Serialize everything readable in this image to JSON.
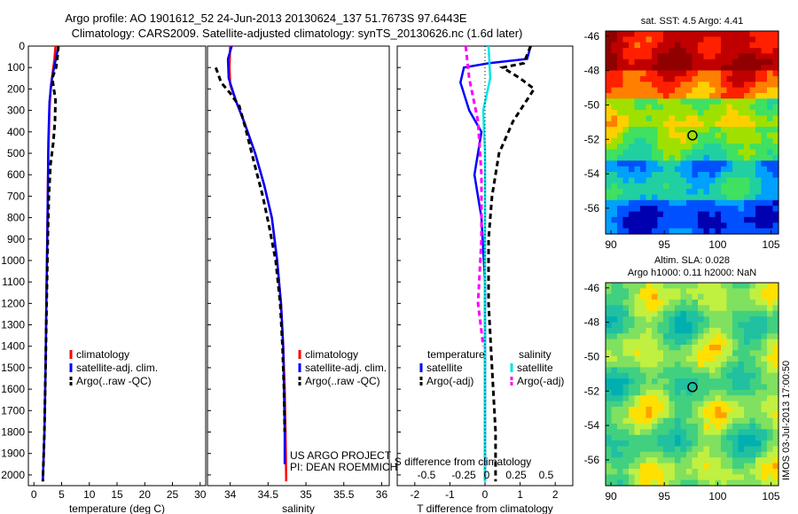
{
  "header": {
    "line1": "Argo profile: AO 1901612_52 24-Jun-2013 20130624_137 51.7673S 97.6443E",
    "line2": "Climatology: CARS2009. Satellite-adjusted climatology: synTS_20130626.nc (1.6d later)"
  },
  "colors": {
    "climatology": "#ff0000",
    "satellite": "#0000ff",
    "argo": "#000000",
    "sal_satellite": "#00e5e5",
    "sal_argo": "#ff00ff"
  },
  "chart_data": [
    {
      "id": "temperature",
      "type": "line",
      "xlabel": "temperature (deg C)",
      "ylabel": "",
      "xlim": [
        -1,
        31
      ],
      "ylim": [
        2050,
        0
      ],
      "xticks": [
        0,
        5,
        10,
        15,
        20,
        25,
        30
      ],
      "yticks": [
        0,
        100,
        200,
        300,
        400,
        500,
        600,
        700,
        800,
        900,
        1000,
        1100,
        1200,
        1300,
        1400,
        1500,
        1600,
        1700,
        1800,
        1900,
        2000
      ],
      "legend": [
        "climatology",
        "satellite-adj. clim.",
        "Argo(..raw -QC)"
      ],
      "series": [
        {
          "name": "climatology",
          "style": "solid",
          "color": "#ff0000",
          "x": [
            3.9,
            3.7,
            3.4,
            3.0,
            2.8,
            2.6,
            2.5,
            2.4,
            2.3,
            2.2,
            2.1,
            1.9,
            1.6
          ],
          "y": [
            0,
            60,
            120,
            200,
            300,
            500,
            700,
            900,
            1100,
            1300,
            1500,
            1800,
            2030
          ]
        },
        {
          "name": "satellite-adj. clim.",
          "style": "solid",
          "color": "#0000ff",
          "x": [
            4.4,
            4.2,
            3.8,
            3.2,
            2.8,
            2.6,
            2.5,
            2.4,
            2.3,
            2.2,
            2.1,
            1.9,
            1.6
          ],
          "y": [
            0,
            30,
            80,
            160,
            260,
            450,
            700,
            900,
            1100,
            1300,
            1500,
            1800,
            2030
          ]
        },
        {
          "name": "Argo(..raw -QC)",
          "style": "dashed",
          "color": "#000000",
          "x": [
            4.4,
            4.3,
            4.0,
            3.3,
            3.9,
            3.8,
            3.5,
            3.0,
            2.7,
            2.5,
            2.3,
            2.1,
            1.9,
            1.6
          ],
          "y": [
            0,
            40,
            100,
            150,
            250,
            350,
            450,
            550,
            700,
            900,
            1200,
            1500,
            1800,
            2030
          ]
        }
      ]
    },
    {
      "id": "salinity",
      "type": "line",
      "xlabel": "salinity",
      "xlim": [
        33.7,
        36.1
      ],
      "ylim": [
        2050,
        0
      ],
      "xticks": [
        34,
        34.5,
        35,
        35.5,
        36
      ],
      "legend": [
        "climatology",
        "satellite-adj. clim.",
        "Argo(..raw -QC)"
      ],
      "annotation": [
        "US ARGO PROJECT",
        "PI: DEAN ROEMMICH"
      ],
      "series": [
        {
          "name": "climatology",
          "style": "solid",
          "color": "#ff0000",
          "x": [
            34.0,
            33.99,
            34.0,
            34.08,
            34.19,
            34.33,
            34.45,
            34.55,
            34.62,
            34.67,
            34.7,
            34.72,
            34.73,
            34.74
          ],
          "y": [
            0,
            100,
            180,
            260,
            360,
            500,
            650,
            800,
            1000,
            1200,
            1400,
            1600,
            1800,
            2030
          ]
        },
        {
          "name": "satellite-adj. clim.",
          "style": "solid",
          "color": "#0000ff",
          "x": [
            34.02,
            33.97,
            33.98,
            34.08,
            34.19,
            34.33,
            34.45,
            34.55,
            34.62,
            34.67,
            34.7,
            34.71,
            34.72,
            34.72
          ],
          "y": [
            0,
            60,
            150,
            260,
            360,
            500,
            650,
            800,
            1000,
            1200,
            1400,
            1600,
            1800,
            1950
          ]
        },
        {
          "name": "Argo(..raw -QC)",
          "style": "dashed",
          "color": "#000000",
          "x": [
            33.81,
            33.88,
            34.0,
            34.12,
            34.2,
            34.32,
            34.43,
            34.52,
            34.6,
            34.66,
            34.69,
            34.71,
            34.72
          ],
          "y": [
            100,
            170,
            220,
            280,
            380,
            550,
            700,
            850,
            1000,
            1200,
            1400,
            1600,
            1800
          ]
        }
      ]
    },
    {
      "id": "differences",
      "type": "line",
      "xlabel": "T difference from climatology",
      "xlabel_top": "S difference from climatology",
      "xlim": [
        -2.5,
        2.5
      ],
      "ylim": [
        2050,
        0
      ],
      "xticks": [
        -2,
        -1,
        0,
        1,
        2
      ],
      "sticks": [
        "-0.5",
        "-0.25",
        "0",
        "0.25",
        "0.5"
      ],
      "legend_titles": [
        "temperature",
        "salinity"
      ],
      "legend": [
        "satellite",
        "Argo(-adj)",
        "satellite",
        "Argo(-adj)"
      ],
      "series": [
        {
          "name": "satellite",
          "group": "temperature",
          "style": "solid",
          "color": "#0000ff",
          "x": [
            1.3,
            1.2,
            0.1,
            -0.6,
            -0.7,
            -0.45,
            -0.1,
            -0.3,
            -0.1,
            0.0,
            0.0,
            0.0,
            0.0,
            0.0
          ],
          "y": [
            0,
            60,
            80,
            100,
            170,
            300,
            400,
            600,
            800,
            1100,
            1400,
            1700,
            1900,
            2030
          ]
        },
        {
          "name": "Argo(-adj)",
          "group": "temperature",
          "style": "dashed",
          "color": "#000000",
          "x": [
            1.3,
            1.1,
            0.5,
            1.0,
            1.4,
            0.8,
            0.4,
            0.2,
            0.1,
            0.1,
            0.2,
            0.3,
            0.3
          ],
          "y": [
            0,
            80,
            100,
            150,
            200,
            350,
            500,
            700,
            900,
            1200,
            1500,
            1800,
            2030
          ]
        },
        {
          "name": "satellite",
          "group": "salinity",
          "style": "solid",
          "color": "#00e5e5",
          "x": [
            0.1,
            0.15,
            -0.05,
            0.0,
            0.0,
            0.0,
            0.0,
            0.0
          ],
          "y": [
            0,
            150,
            300,
            500,
            900,
            1300,
            1700,
            2030
          ]
        },
        {
          "name": "Argo(-adj)",
          "group": "salinity",
          "style": "dashed",
          "color": "#ff00ff",
          "x": [
            -0.55,
            -0.45,
            -0.2,
            -0.1,
            -0.1,
            -0.2,
            -0.05
          ],
          "y": [
            0,
            150,
            350,
            600,
            900,
            1200,
            1400
          ]
        }
      ]
    },
    {
      "id": "sst-map",
      "type": "heatmap",
      "title": "sat. SST: 4.5 Argo: 4.41",
      "xlim": [
        89.5,
        105.7
      ],
      "ylim": [
        -57.5,
        -45.7
      ],
      "xticks": [
        90,
        95,
        100,
        105
      ],
      "yticks": [
        -46,
        -48,
        -50,
        -52,
        -54,
        -56
      ],
      "marker": {
        "lon": 97.64,
        "lat": -51.77
      }
    },
    {
      "id": "sla-map",
      "type": "heatmap",
      "title": "Altim. SLA: 0.028",
      "subtitle": "Argo h1000: 0.11 h2000: NaN",
      "xlim": [
        89.5,
        105.7
      ],
      "ylim": [
        -57.5,
        -45.7
      ],
      "xticks": [
        90,
        95,
        100,
        105
      ],
      "yticks": [
        -46,
        -48,
        -50,
        -52,
        -54,
        -56
      ],
      "marker": {
        "lon": 97.64,
        "lat": -51.77
      }
    }
  ],
  "side_label": "IMOS 03-Jul-2013 17:00:50"
}
